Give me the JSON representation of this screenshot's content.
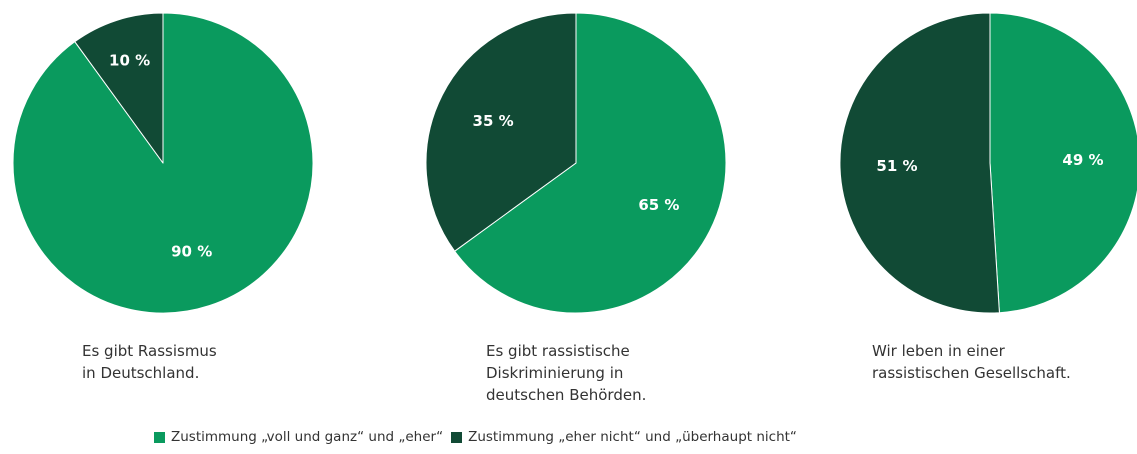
{
  "colors": {
    "agree": "#0a9a5e",
    "disagree": "#114a35",
    "divider": "#ffffff"
  },
  "chart_data": [
    {
      "type": "pie",
      "caption": "Es gibt Rassismus\nin Deutschland.",
      "slices": [
        {
          "series": "agree",
          "value": 90,
          "label": "90 %"
        },
        {
          "series": "disagree",
          "value": 10,
          "label": "10 %"
        }
      ]
    },
    {
      "type": "pie",
      "caption": "Es gibt rassistische\nDiskriminierung in\ndeutschen Behörden.",
      "slices": [
        {
          "series": "agree",
          "value": 65,
          "label": "65 %"
        },
        {
          "series": "disagree",
          "value": 35,
          "label": "35 %"
        }
      ]
    },
    {
      "type": "pie",
      "caption": "Wir leben in einer\nrassistischen Gesellschaft.",
      "slices": [
        {
          "series": "agree",
          "value": 49,
          "label": "49 %"
        },
        {
          "series": "disagree",
          "value": 51,
          "label": "51 %"
        }
      ]
    }
  ],
  "legend": [
    {
      "series": "agree",
      "label": "Zustimmung „voll und ganz“ und „eher“"
    },
    {
      "series": "disagree",
      "label": "Zustimmung „eher nicht“ und „überhaupt nicht“"
    }
  ]
}
